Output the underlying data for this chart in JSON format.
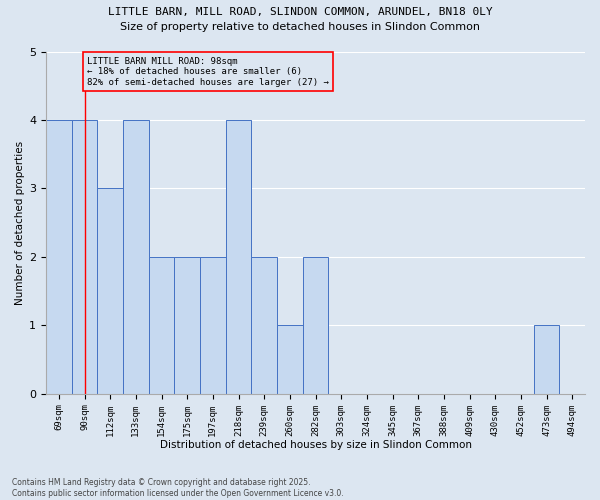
{
  "title1": "LITTLE BARN, MILL ROAD, SLINDON COMMON, ARUNDEL, BN18 0LY",
  "title2": "Size of property relative to detached houses in Slindon Common",
  "xlabel": "Distribution of detached houses by size in Slindon Common",
  "ylabel": "Number of detached properties",
  "footer": "Contains HM Land Registry data © Crown copyright and database right 2025.\nContains public sector information licensed under the Open Government Licence v3.0.",
  "categories": [
    "69sqm",
    "90sqm",
    "112sqm",
    "133sqm",
    "154sqm",
    "175sqm",
    "197sqm",
    "218sqm",
    "239sqm",
    "260sqm",
    "282sqm",
    "303sqm",
    "324sqm",
    "345sqm",
    "367sqm",
    "388sqm",
    "409sqm",
    "430sqm",
    "452sqm",
    "473sqm",
    "494sqm"
  ],
  "values": [
    4,
    4,
    3,
    4,
    2,
    2,
    2,
    4,
    2,
    1,
    2,
    0,
    0,
    0,
    0,
    0,
    0,
    0,
    0,
    1,
    0
  ],
  "bar_color": "#c6d9f0",
  "bar_edge_color": "#4472c4",
  "background_color": "#dce6f1",
  "grid_color": "#ffffff",
  "red_line_x": 1,
  "annotation_text": "LITTLE BARN MILL ROAD: 98sqm\n← 18% of detached houses are smaller (6)\n82% of semi-detached houses are larger (27) →",
  "ylim": [
    0,
    5
  ],
  "yticks": [
    0,
    1,
    2,
    3,
    4,
    5
  ]
}
